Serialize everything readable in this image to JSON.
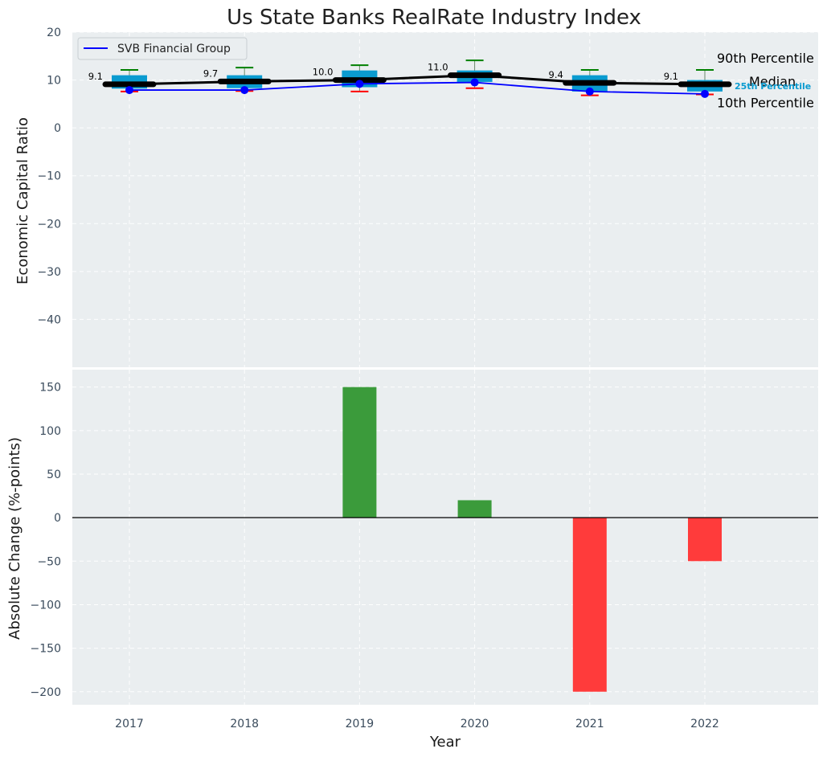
{
  "chart_data": [
    {
      "type": "box",
      "title": "Us State Banks RealRate Industry Index",
      "xlabel": "",
      "ylabel": "Economic Capital Ratio",
      "ylim": [
        -50,
        20
      ],
      "yticks": [
        20,
        10,
        0,
        -10,
        -20,
        -30,
        -40
      ],
      "categories": [
        "2017",
        "2018",
        "2019",
        "2020",
        "2021",
        "2022"
      ],
      "p10": [
        7.6,
        7.7,
        7.6,
        8.3,
        6.8,
        7.0
      ],
      "p25": [
        8.2,
        8.3,
        8.5,
        9.6,
        7.6,
        7.6
      ],
      "median": [
        9.1,
        9.7,
        10.0,
        11.0,
        9.4,
        9.1
      ],
      "p75": [
        11.0,
        11.0,
        12.0,
        12.0,
        11.0,
        10.0
      ],
      "p90": [
        12.1,
        12.6,
        13.1,
        14.1,
        12.1,
        12.1
      ],
      "median_labels": [
        "9.1",
        "9.7",
        "10.0",
        "11.0",
        "9.4",
        "9.1"
      ],
      "series": [
        {
          "name": "SVB Financial Group",
          "values": [
            7.9,
            7.9,
            9.2,
            9.5,
            7.6,
            7.1
          ],
          "color": "#0000ff"
        }
      ],
      "legend": "top-left",
      "annotations": {
        "p90": "90th Percentile",
        "median": "Median",
        "p25": "25th Percentile",
        "p10": "10th Percentile"
      },
      "colors": {
        "box": "#0a9bd0",
        "median_line": "#000000",
        "p90_whisker": "#008000",
        "p10_whisker": "#ff0000",
        "background": "#eaeef0"
      }
    },
    {
      "type": "bar",
      "xlabel": "Year",
      "ylabel": "Absolute Change (%-points)",
      "ylim": [
        -215,
        170
      ],
      "yticks": [
        150,
        100,
        50,
        0,
        -50,
        -100,
        -150,
        -200
      ],
      "categories": [
        "2017",
        "2018",
        "2019",
        "2020",
        "2021",
        "2022"
      ],
      "values": [
        0,
        0,
        150,
        20,
        -200,
        -50
      ],
      "colors": {
        "positive": "#3b9b3b",
        "negative": "#ff3b3b"
      }
    }
  ]
}
